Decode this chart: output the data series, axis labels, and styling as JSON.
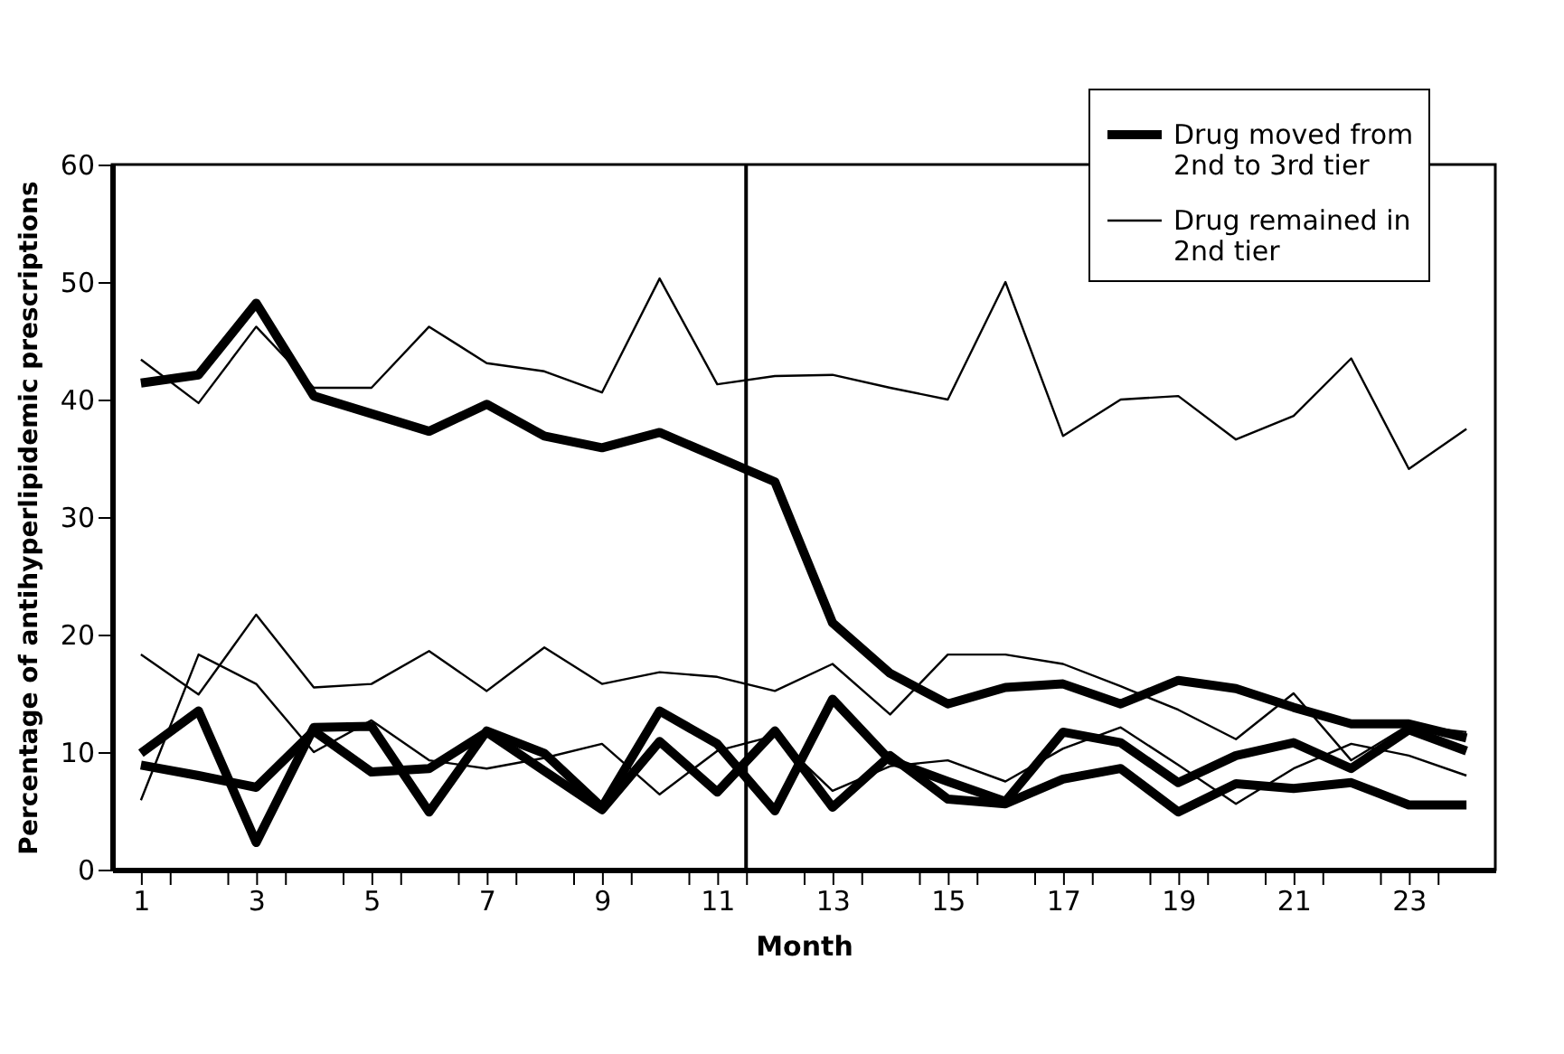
{
  "chart_data": {
    "type": "line",
    "xlabel": "Month",
    "ylabel": "Percentage of antihyperlipidemic prescriptions",
    "x": [
      1,
      2,
      3,
      4,
      5,
      6,
      7,
      8,
      9,
      10,
      11,
      12,
      13,
      14,
      15,
      16,
      17,
      18,
      19,
      20,
      21,
      22,
      23,
      24
    ],
    "xlim": [
      0.5,
      24.5
    ],
    "xticks": [
      1,
      {
        "value": 1.5,
        "label": null
      },
      {
        "value": 2.5,
        "label": null
      },
      3,
      {
        "value": 3.5,
        "label": null
      },
      {
        "value": 4.5,
        "label": null
      },
      5,
      {
        "value": 5.5,
        "label": null
      },
      {
        "value": 6.5,
        "label": null
      },
      7,
      {
        "value": 7.5,
        "label": null
      },
      {
        "value": 8.5,
        "label": null
      },
      9,
      {
        "value": 9.5,
        "label": null
      },
      {
        "value": 10.5,
        "label": null
      },
      11,
      {
        "value": 11.5,
        "label": null
      },
      {
        "value": 12.5,
        "label": null
      },
      13,
      {
        "value": 13.5,
        "label": null
      },
      {
        "value": 14.5,
        "label": null
      },
      15,
      {
        "value": 15.5,
        "label": null
      },
      {
        "value": 16.5,
        "label": null
      },
      17,
      {
        "value": 17.5,
        "label": null
      },
      {
        "value": 18.5,
        "label": null
      },
      19,
      {
        "value": 19.5,
        "label": null
      },
      {
        "value": 20.5,
        "label": null
      },
      21,
      {
        "value": 21.5,
        "label": null
      },
      {
        "value": 22.5,
        "label": null
      },
      23,
      {
        "value": 23.5,
        "label": null
      }
    ],
    "ylim": [
      0,
      60
    ],
    "yticks": [
      0,
      10,
      20,
      30,
      40,
      50,
      60
    ],
    "grid": false,
    "legend": "top right",
    "marker": "none",
    "line_style": "solid",
    "ref_lines": [
      {
        "axis": "x",
        "value": 11.5,
        "color": "#000000"
      }
    ],
    "series": [
      {
        "name": "Drug moved from 2nd to 3rd tier",
        "color": "#000000",
        "values": [
          41.4,
          42.1,
          48.2,
          40.3,
          38.8,
          37.3,
          39.6,
          36.9,
          35.9,
          37.2,
          35.1,
          33.0,
          21.0,
          16.7,
          14.1,
          15.5,
          15.8,
          14.1,
          16.1,
          15.4,
          13.8,
          12.4,
          12.4,
          11.2
        ]
      },
      {
        "color": "#000000",
        "values": [
          9.9,
          13.5,
          2.3,
          12.1,
          12.2,
          4.9,
          11.8,
          9.9,
          5.3,
          13.5,
          10.7,
          5.0,
          14.5,
          9.3,
          7.5,
          5.8,
          11.7,
          10.8,
          7.4,
          9.7,
          10.8,
          8.6,
          11.9,
          10.1
        ]
      },
      {
        "color": "#000000",
        "values": [
          8.9,
          8.0,
          7.0,
          11.8,
          8.3,
          8.6,
          11.7,
          8.4,
          5.1,
          10.9,
          6.6,
          11.8,
          5.3,
          9.7,
          6.0,
          5.6,
          7.7,
          8.6,
          4.9,
          7.3,
          6.9,
          7.4,
          5.5,
          5.5
        ]
      },
      {
        "name": "Drug remained in 2nd tier",
        "color": "#000000",
        "values": [
          43.4,
          39.7,
          46.2,
          41.0,
          41.0,
          46.2,
          43.1,
          42.4,
          40.6,
          50.3,
          41.3,
          42.0,
          42.1,
          41.0,
          40.0,
          50.0,
          36.9,
          40.0,
          40.3,
          36.6,
          38.6,
          43.5,
          34.1,
          37.5
        ]
      },
      {
        "color": "#000000",
        "values": [
          18.3,
          14.9,
          21.7,
          15.5,
          15.8,
          18.6,
          15.2,
          18.9,
          15.8,
          16.8,
          16.4,
          15.2,
          17.5,
          13.2,
          18.3,
          18.3,
          17.5,
          15.6,
          13.6,
          11.1,
          15.0,
          9.3,
          12.3,
          11.7
        ]
      },
      {
        "color": "#000000",
        "values": [
          5.9,
          18.3,
          15.8,
          10.0,
          12.7,
          9.3,
          8.6,
          9.5,
          10.7,
          6.4,
          10.1,
          11.4,
          6.7,
          8.8,
          9.3,
          7.5,
          10.3,
          12.1,
          8.9,
          5.6,
          8.6,
          10.7,
          9.7,
          8.0
        ]
      }
    ]
  }
}
